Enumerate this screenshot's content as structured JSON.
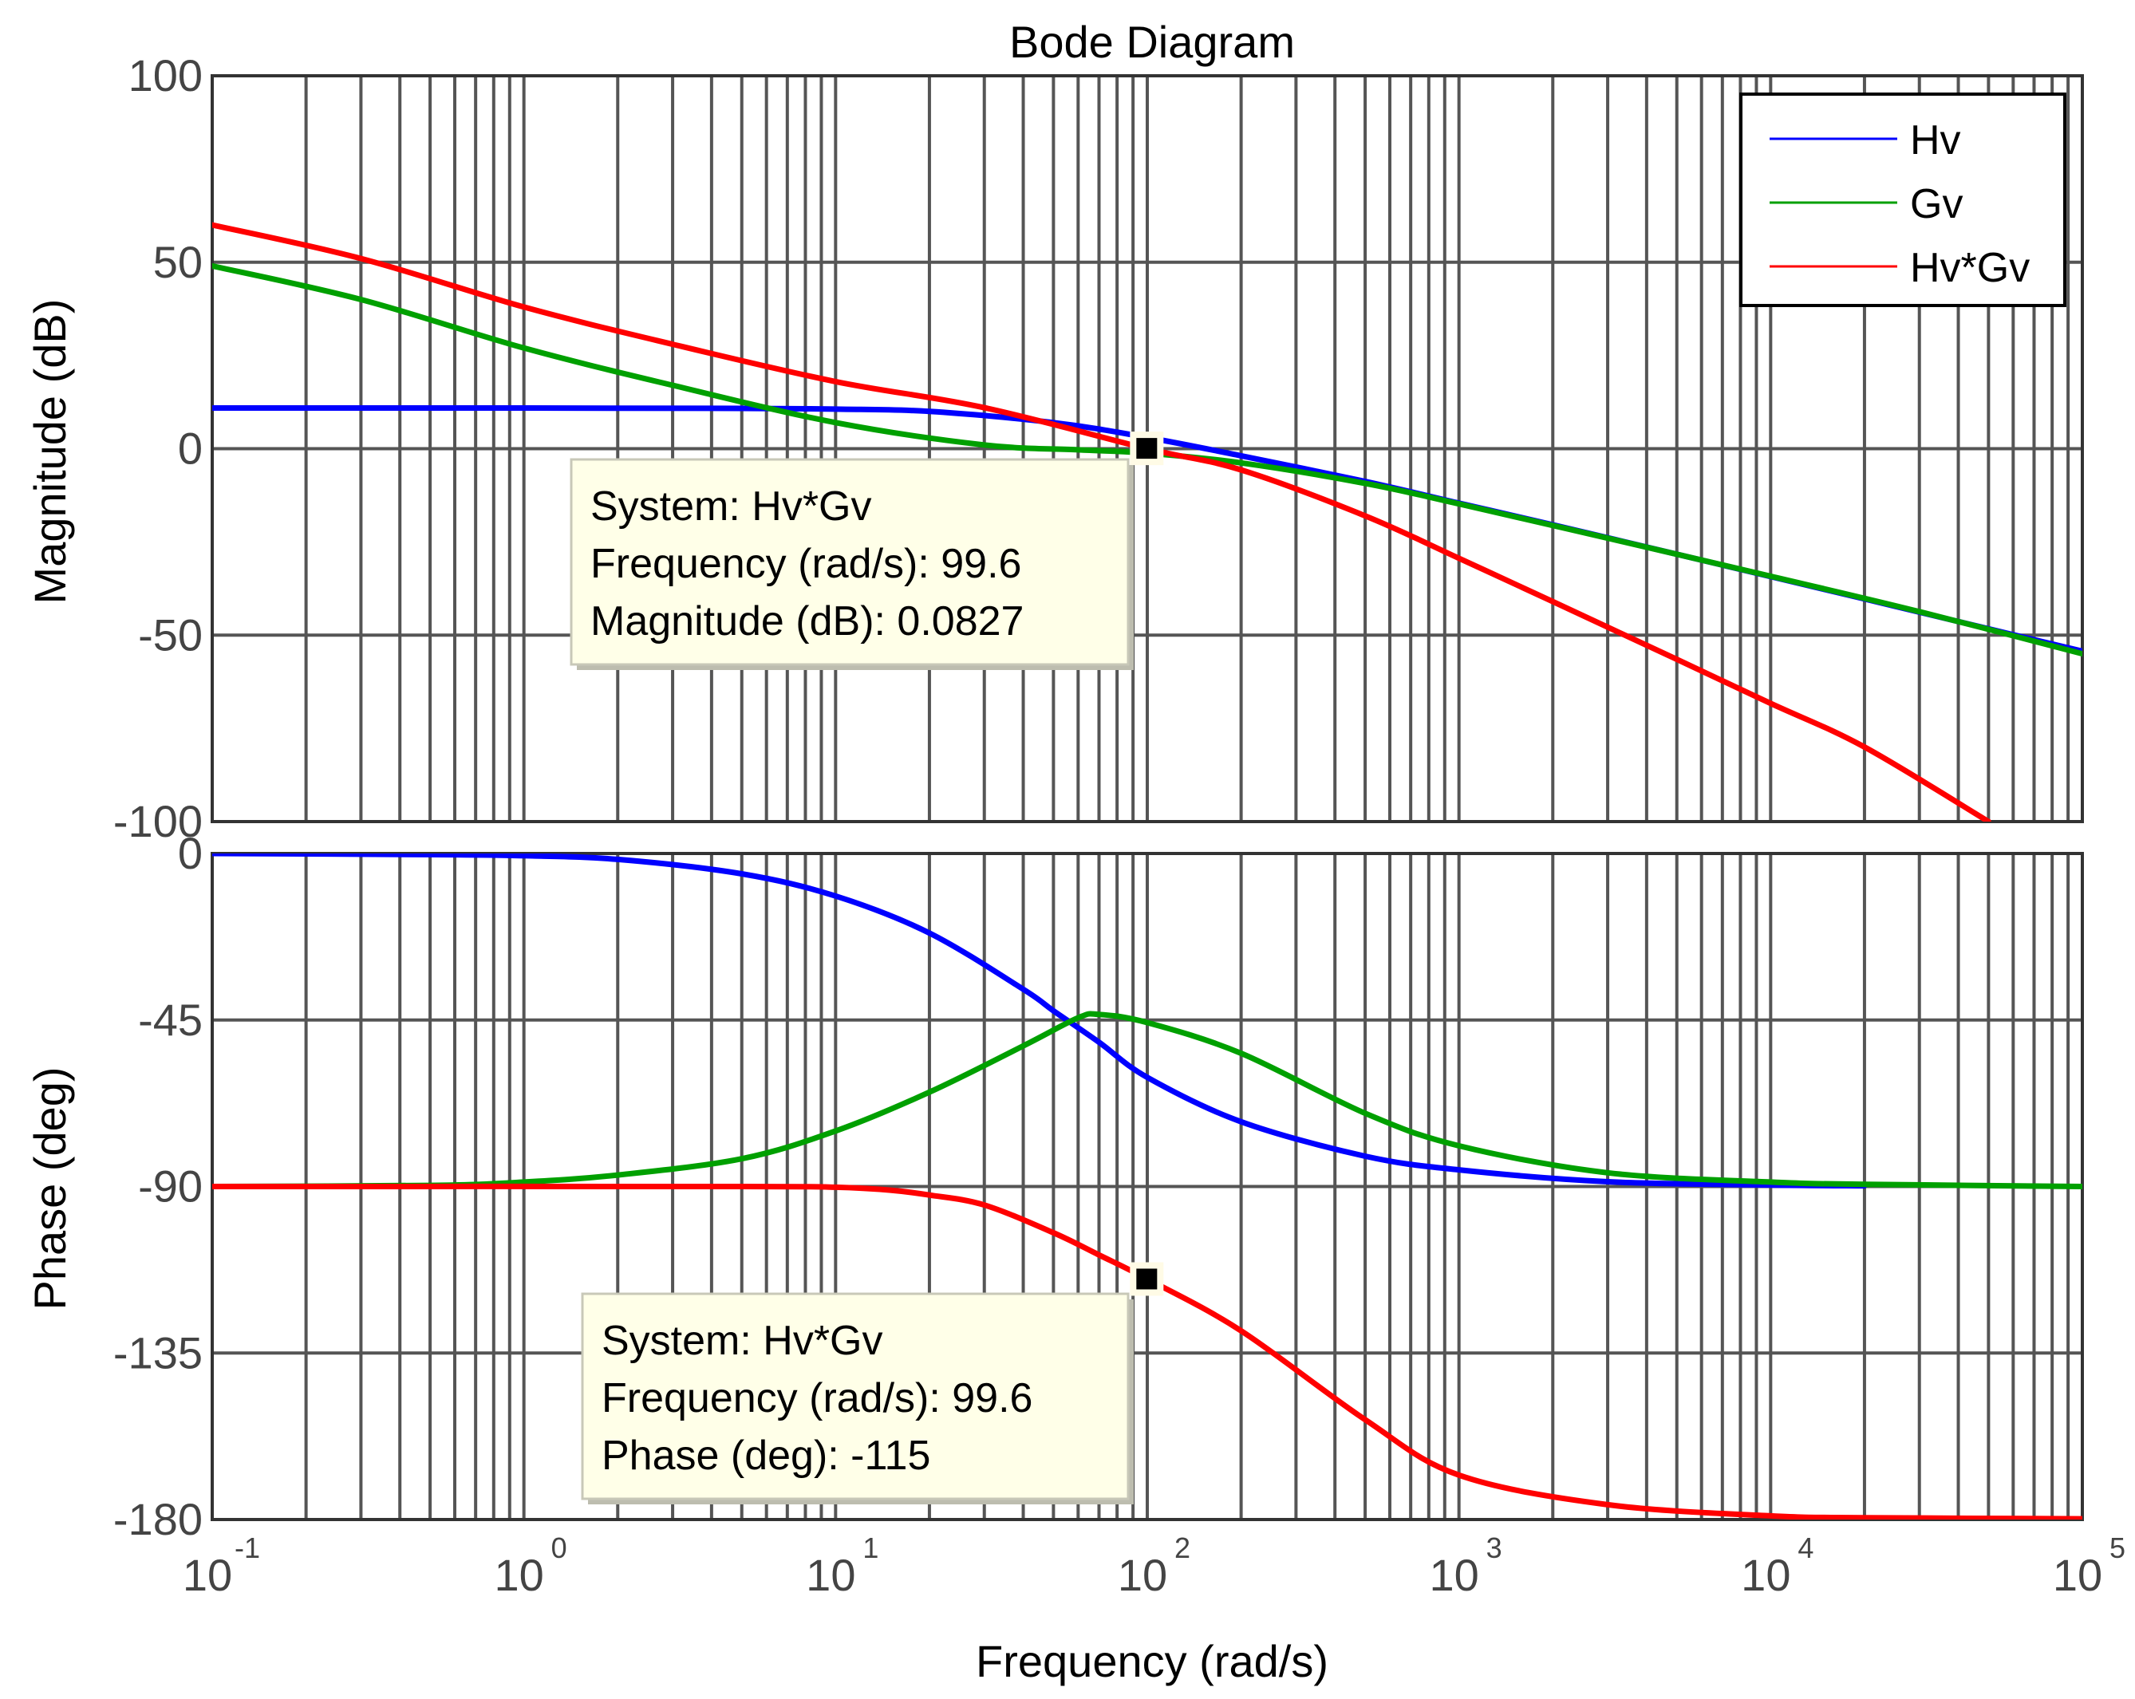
{
  "chart_data": {
    "type": "line",
    "title": "Bode Diagram",
    "xlabel": "Frequency  (rad/s)",
    "x_scale": "log",
    "xlim": [
      0.1,
      100000
    ],
    "x_ticks": [
      {
        "base": "10",
        "exp": "-1"
      },
      {
        "base": "10",
        "exp": "0"
      },
      {
        "base": "10",
        "exp": "1"
      },
      {
        "base": "10",
        "exp": "2"
      },
      {
        "base": "10",
        "exp": "3"
      },
      {
        "base": "10",
        "exp": "4"
      },
      {
        "base": "10",
        "exp": "5"
      }
    ],
    "grid": true,
    "legend": {
      "placement": "top-right",
      "entries": [
        {
          "label": "Hv",
          "color": "#0000ff"
        },
        {
          "label": "Gv",
          "color": "#00a000"
        },
        {
          "label": "Hv*Gv",
          "color": "#ff0000"
        }
      ]
    },
    "subplots": [
      {
        "name": "magnitude",
        "ylabel": "Magnitude (dB)",
        "ylim": [
          -100,
          100
        ],
        "y_ticks": [
          "100",
          "50",
          "0",
          "-50",
          "-100"
        ],
        "y_tick_values": [
          100,
          50,
          0,
          -50,
          -100
        ],
        "series": [
          {
            "name": "Hv",
            "color": "#0000ff",
            "x": [
              0.1,
              1,
              5,
              10,
              20,
              50,
              100,
              200,
              500,
              1000,
              2000,
              5000,
              10000,
              20000,
              50000,
              100000
            ],
            "values": [
              10.9,
              10.9,
              10.8,
              10.6,
              10.0,
              7.0,
              3.0,
              -1.9,
              -8.8,
              -14.6,
              -20.4,
              -28.3,
              -34.3,
              -40.3,
              -48.3,
              -54.3
            ]
          },
          {
            "name": "Gv",
            "color": "#00a000",
            "x": [
              0.1,
              0.3,
              1,
              3,
              10,
              30,
              60,
              100,
              200,
              500,
              1000,
              3000,
              10000,
              30000,
              100000
            ],
            "values": [
              49,
              40,
              27,
              17,
              7,
              1,
              -0.3,
              -1.2,
              -3.8,
              -9.3,
              -14.8,
              -24,
              -34.2,
              -43.7,
              -55
            ]
          },
          {
            "name": "Hv*Gv",
            "color": "#ff0000",
            "x": [
              0.1,
              0.3,
              1,
              3,
              10,
              30,
              100,
              200,
              500,
              1000,
              2000,
              5000,
              10000,
              20000,
              50000
            ],
            "values": [
              60,
              51,
              38,
              28,
              18,
              11,
              0,
              -5.7,
              -18,
              -29.4,
              -41,
              -56.5,
              -68.3,
              -80,
              -100
            ]
          }
        ],
        "marker": {
          "x": 99.6,
          "y": 0.0827
        },
        "datatip": {
          "lines": [
            "System: Hv*Gv",
            "Frequency (rad/s): 99.6",
            "Magnitude (dB): 0.0827"
          ]
        }
      },
      {
        "name": "phase",
        "ylabel": "Phase (deg)",
        "ylim": [
          -180,
          0
        ],
        "y_ticks": [
          "0",
          "-45",
          "-90",
          "-135",
          "-180"
        ],
        "y_tick_values": [
          0,
          -45,
          -90,
          -135,
          -180
        ],
        "series": [
          {
            "name": "Hv",
            "color": "#0000ff",
            "x": [
              0.1,
              0.5,
              1,
              2,
              5,
              10,
              20,
              40,
              50,
              70,
              100,
              200,
              500,
              1000,
              3000,
              10000,
              20000
            ],
            "values": [
              0,
              -0.3,
              -0.6,
              -1.6,
              -5.5,
              -11.5,
              -21.5,
              -36.7,
              -42.5,
              -51,
              -60.5,
              -72.5,
              -81.8,
              -85.5,
              -88.7,
              -89.6,
              -89.8
            ]
          },
          {
            "name": "Gv",
            "color": "#00a000",
            "x": [
              0.1,
              0.5,
              1,
              2,
              5,
              10,
              20,
              40,
              60,
              70,
              100,
              200,
              500,
              1000,
              3000,
              10000,
              20000,
              100000
            ],
            "values": [
              -90,
              -89.7,
              -88.8,
              -86.9,
              -82.5,
              -75,
              -64.5,
              -52,
              -44.4,
              -43.5,
              -45.7,
              -54,
              -70.2,
              -79,
              -86.3,
              -88.8,
              -89.4,
              -90
            ]
          },
          {
            "name": "Hv*Gv",
            "color": "#ff0000",
            "x": [
              0.1,
              5,
              10,
              15,
              20,
              30,
              50,
              70,
              100,
              200,
              500,
              1000,
              3000,
              10000,
              20000,
              100000
            ],
            "values": [
              -90,
              -90,
              -90.2,
              -91,
              -92.3,
              -95,
              -102.5,
              -108.5,
              -115,
              -129,
              -153,
              -168,
              -176,
              -179,
              -179.5,
              -179.8
            ]
          }
        ],
        "marker": {
          "x": 99.6,
          "y": -115
        },
        "datatip": {
          "lines": [
            "System: Hv*Gv",
            "Frequency (rad/s): 99.6",
            "Phase (deg): -115"
          ]
        }
      }
    ]
  }
}
